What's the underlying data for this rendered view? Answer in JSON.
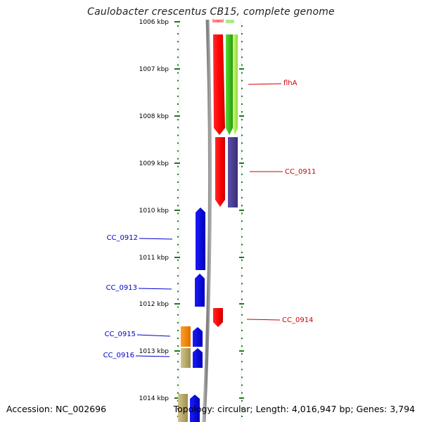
{
  "title": "Caulobacter crescentus CB15, complete genome",
  "footer": {
    "accession": "Accession: NC_002696",
    "summary": "Topology: circular; Length: 4,016,947 bp; Genes: 3,794"
  },
  "colors": {
    "tick": "#1a7a1a",
    "backbone": "#8a8a8a",
    "reverse_label": "#0000cc",
    "forward_label": "#cc0000",
    "red_gene": "#ff0000",
    "green_gene": "#44cc22",
    "light_green_gene": "#aaf04a",
    "purple_gene": "#4a3f8f",
    "blue_gene": "#0000ee",
    "orange_gene": "#ff8800",
    "olive_gene": "#b9a86a"
  },
  "ticks": [
    "1006 kbp",
    "1007 kbp",
    "1008 kbp",
    "1009 kbp",
    "1010 kbp",
    "1011 kbp",
    "1012 kbp",
    "1013 kbp",
    "1014 kbp"
  ],
  "labels": {
    "flha": "flhA",
    "cc0911": "CC_0911",
    "cc0912": "CC_0912",
    "cc0913": "CC_0913",
    "cc0914": "CC_0914",
    "cc0915": "CC_0915",
    "cc0916": "CC_0916"
  }
}
